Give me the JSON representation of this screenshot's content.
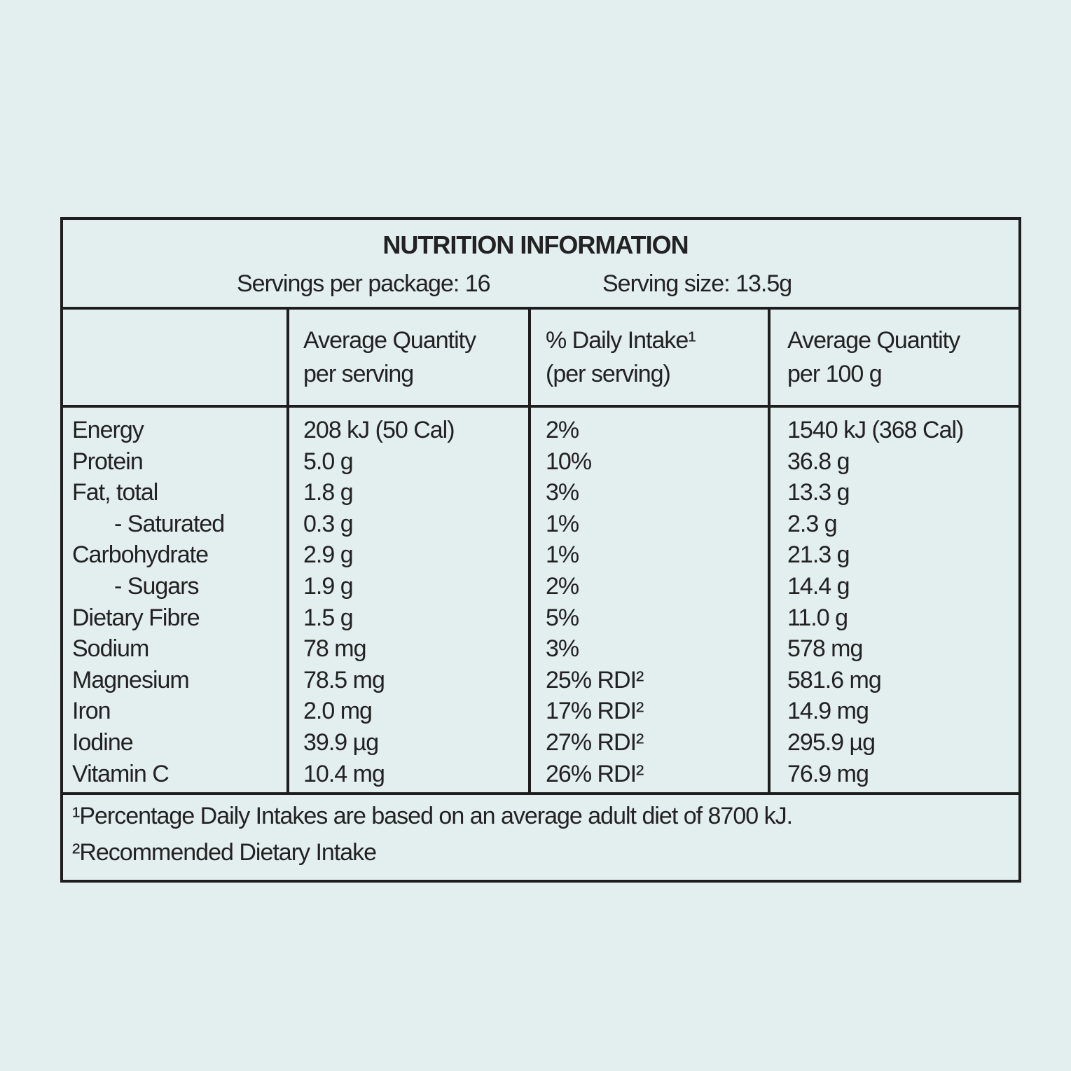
{
  "title": "NUTRITION INFORMATION",
  "servings_per_package": "Servings per package: 16",
  "serving_size": "Serving size: 13.5g",
  "header": [
    [],
    [
      "Average Quantity",
      "per serving"
    ],
    [
      "% Daily Intake¹",
      "(per serving)"
    ],
    [
      "Average Quantity",
      "per 100 g"
    ]
  ],
  "rows": [
    [
      "Energy",
      "208 kJ (50 Cal)",
      "2%",
      "1540 kJ (368 Cal)"
    ],
    [
      "Protein",
      "5.0 g",
      "10%",
      "36.8 g"
    ],
    [
      "Fat, total",
      "1.8 g",
      "3%",
      "13.3 g"
    ],
    [
      "- Saturated",
      "0.3 g",
      "1%",
      "2.3 g"
    ],
    [
      "Carbohydrate",
      "2.9 g",
      "1%",
      "21.3 g"
    ],
    [
      "- Sugars",
      "1.9 g",
      "2%",
      "14.4 g"
    ],
    [
      "Dietary Fibre",
      "1.5 g",
      "5%",
      "11.0 g"
    ],
    [
      "Sodium",
      "78 mg",
      "3%",
      "578 mg"
    ],
    [
      "Magnesium",
      "78.5 mg",
      "25% RDI²",
      "581.6 mg"
    ],
    [
      "Iron",
      "2.0 mg",
      "17% RDI²",
      "14.9 mg"
    ],
    [
      "Iodine",
      "39.9 µg",
      "27% RDI²",
      "295.9 µg"
    ],
    [
      "Vitamin C",
      "10.4 mg",
      "26% RDI²",
      "76.9 mg"
    ]
  ],
  "footnotes": [
    "¹Percentage Daily Intakes are based on an average adult diet of 8700 kJ.",
    "²Recommended Dietary Intake"
  ]
}
